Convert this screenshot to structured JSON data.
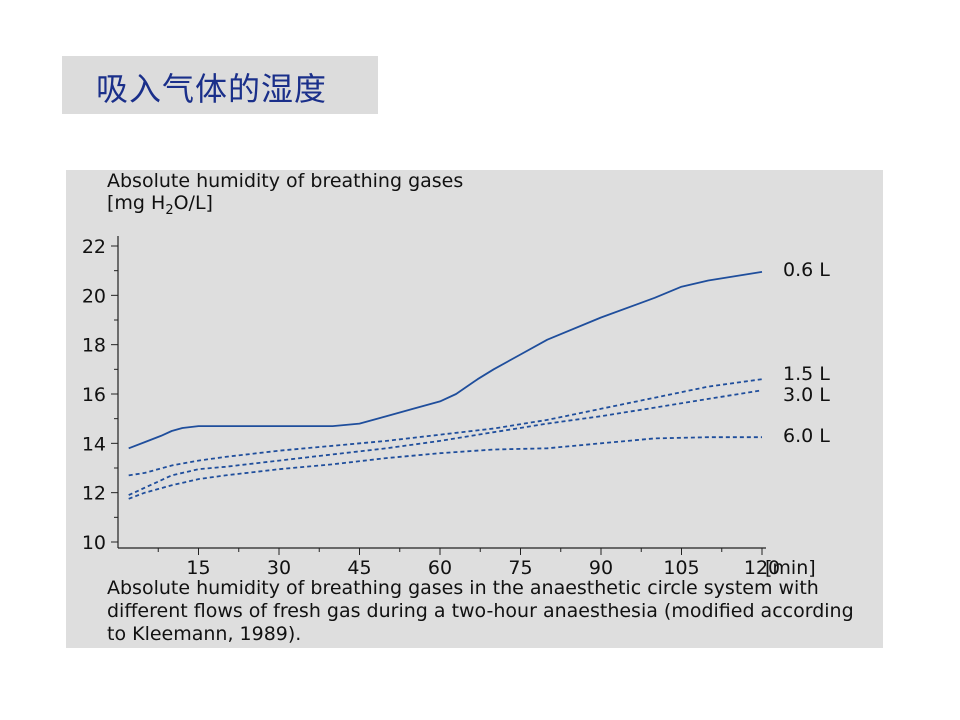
{
  "slide": {
    "title": "吸入气体的湿度"
  },
  "chart_data": {
    "type": "line",
    "title": "Absolute humidity of breathing gases",
    "ylabel_prefix": "[mg H",
    "ylabel_sub": "2",
    "ylabel_suffix": "O/L]",
    "xlabel": "[min]",
    "caption": "Absolute humidity of breathing gases in the anaesthetic circle system with different flows of fresh gas during a two-hour anaesthesia (modified according to Kleemann, 1989).",
    "xlim": [
      0,
      120
    ],
    "ylim": [
      10,
      22
    ],
    "xticks": [
      15,
      30,
      45,
      60,
      75,
      90,
      105,
      120
    ],
    "yticks": [
      10,
      12,
      14,
      16,
      18,
      20,
      22
    ],
    "grid": false,
    "line_color": "#1f4e9c",
    "series": [
      {
        "name": "0.6 L",
        "style": "solid",
        "x": [
          2,
          5,
          8,
          10,
          12,
          15,
          20,
          30,
          40,
          45,
          50,
          55,
          60,
          63,
          65,
          67,
          70,
          75,
          80,
          90,
          100,
          105,
          110,
          120
        ],
        "y": [
          13.8,
          14.05,
          14.3,
          14.5,
          14.62,
          14.7,
          14.7,
          14.7,
          14.7,
          14.8,
          15.1,
          15.4,
          15.7,
          16.0,
          16.3,
          16.6,
          17.0,
          17.6,
          18.2,
          19.1,
          19.9,
          20.35,
          20.6,
          20.95
        ]
      },
      {
        "name": "1.5 L",
        "style": "dashed",
        "x": [
          2,
          5,
          10,
          15,
          20,
          30,
          40,
          50,
          60,
          70,
          80,
          90,
          100,
          110,
          120
        ],
        "y": [
          12.7,
          12.8,
          13.1,
          13.3,
          13.45,
          13.7,
          13.9,
          14.1,
          14.35,
          14.6,
          14.95,
          15.4,
          15.85,
          16.3,
          16.6
        ]
      },
      {
        "name": "3.0 L",
        "style": "dashed",
        "x": [
          2,
          5,
          10,
          15,
          20,
          30,
          40,
          50,
          60,
          70,
          80,
          90,
          100,
          110,
          120
        ],
        "y": [
          11.9,
          12.2,
          12.7,
          12.95,
          13.05,
          13.3,
          13.55,
          13.8,
          14.1,
          14.45,
          14.8,
          15.1,
          15.45,
          15.8,
          16.15
        ]
      },
      {
        "name": "6.0 L",
        "style": "dashed",
        "x": [
          2,
          5,
          10,
          15,
          20,
          30,
          40,
          50,
          60,
          70,
          80,
          90,
          100,
          110,
          120
        ],
        "y": [
          11.75,
          12.0,
          12.3,
          12.55,
          12.7,
          12.95,
          13.15,
          13.4,
          13.6,
          13.75,
          13.8,
          14.0,
          14.2,
          14.25,
          14.25
        ]
      }
    ]
  }
}
